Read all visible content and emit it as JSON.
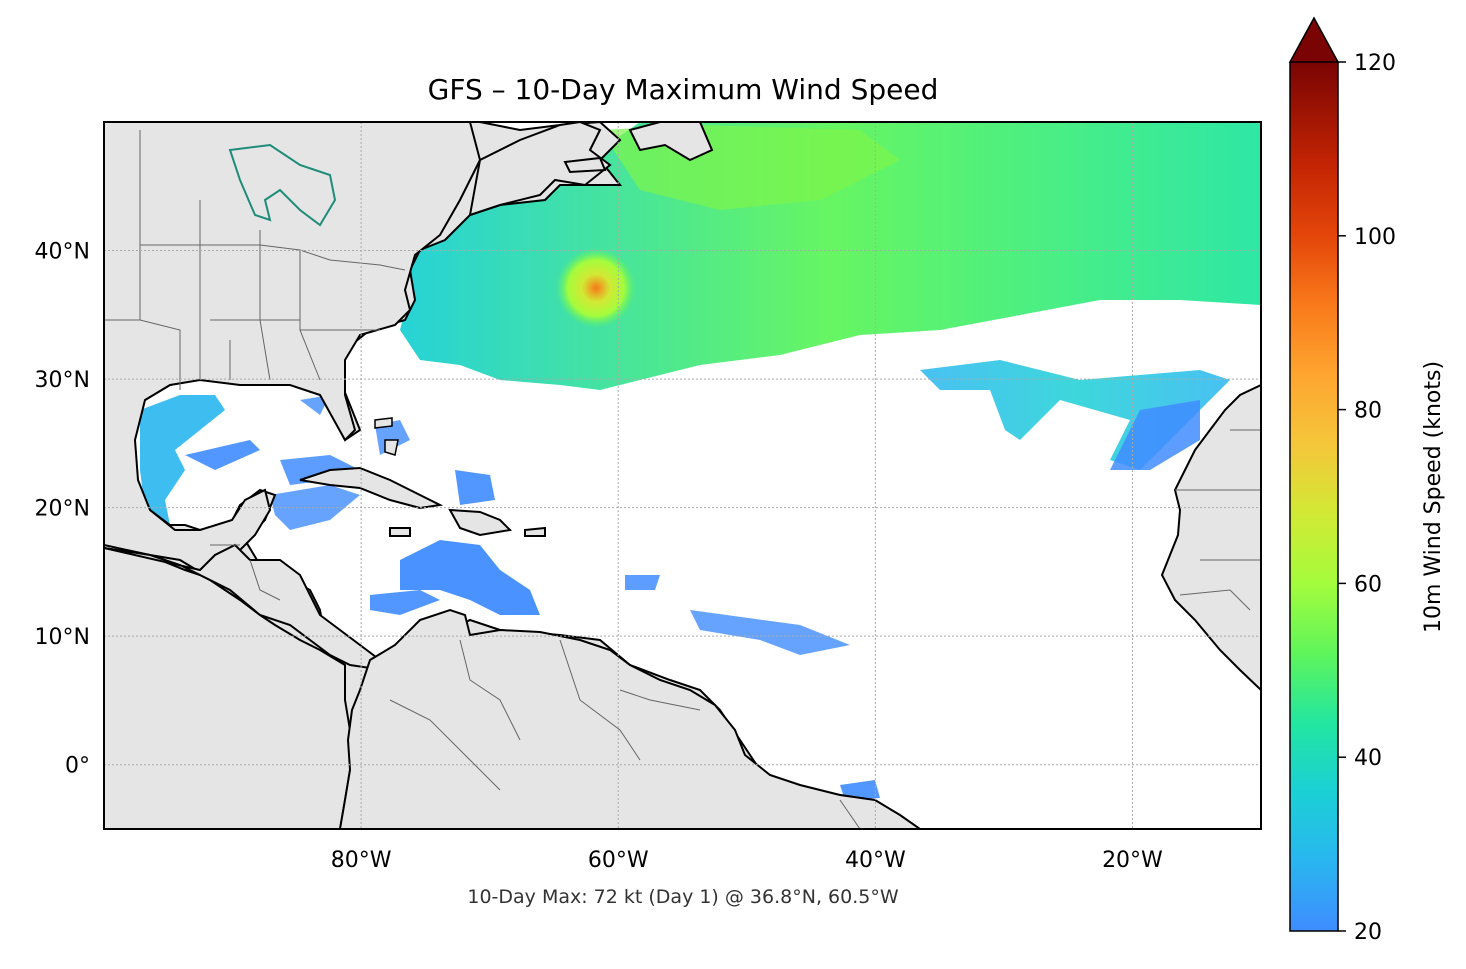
{
  "title": "GFS – 10-Day Maximum Wind Speed",
  "caption": "10-Day Max: 72 kt (Day 1) @ 36.8°N, 60.5°W",
  "map": {
    "lon_range": [
      -100,
      -10
    ],
    "lat_range": [
      -5,
      50
    ],
    "lon_ticks": [
      {
        "value": -80,
        "label": "80°W"
      },
      {
        "value": -60,
        "label": "60°W"
      },
      {
        "value": -40,
        "label": "40°W"
      },
      {
        "value": -20,
        "label": "20°W"
      }
    ],
    "lat_ticks": [
      {
        "value": 40,
        "label": "40°N"
      },
      {
        "value": 30,
        "label": "30°N"
      },
      {
        "value": 20,
        "label": "20°N"
      },
      {
        "value": 10,
        "label": "10°N"
      },
      {
        "value": 0,
        "label": "0°"
      }
    ],
    "grid": true,
    "land_color": "#e5e5e5",
    "ocean_color": "#ffffff",
    "max_marker": {
      "lat": 36.8,
      "lon": -60.5,
      "value_kt": 72
    }
  },
  "colorbar": {
    "label": "10m Wind Speed (knots)",
    "range": [
      20,
      120
    ],
    "ticks": [
      {
        "value": 20,
        "label": "20"
      },
      {
        "value": 40,
        "label": "40"
      },
      {
        "value": 60,
        "label": "60"
      },
      {
        "value": 80,
        "label": "80"
      },
      {
        "value": 100,
        "label": "100"
      },
      {
        "value": 120,
        "label": "120"
      }
    ],
    "extend": "max",
    "extend_color": "#7a0403",
    "stops": [
      {
        "v": 0.0,
        "c": "#3f8cff"
      },
      {
        "v": 0.08,
        "c": "#29b6f0"
      },
      {
        "v": 0.16,
        "c": "#1bd0d5"
      },
      {
        "v": 0.24,
        "c": "#23e6a0"
      },
      {
        "v": 0.32,
        "c": "#5ff55a"
      },
      {
        "v": 0.4,
        "c": "#a4fc3c"
      },
      {
        "v": 0.48,
        "c": "#d2e935"
      },
      {
        "v": 0.56,
        "c": "#f5c63a"
      },
      {
        "v": 0.64,
        "c": "#fea530"
      },
      {
        "v": 0.72,
        "c": "#f97a1a"
      },
      {
        "v": 0.8,
        "c": "#e4460a"
      },
      {
        "v": 0.88,
        "c": "#c42503"
      },
      {
        "v": 1.0,
        "c": "#7a0403"
      }
    ]
  }
}
